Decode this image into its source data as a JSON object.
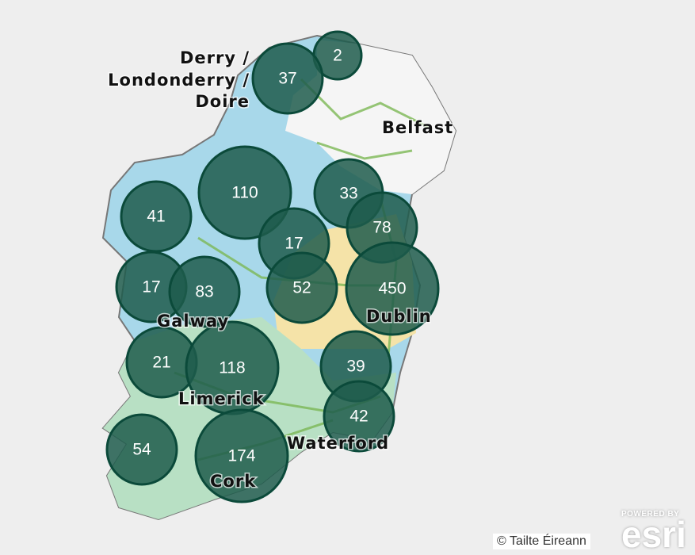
{
  "map": {
    "place_labels": [
      "Derry /",
      "Londonderry /",
      "Doire",
      "Belfast",
      "Galway",
      "Limerick",
      "Cork",
      "Waterford",
      "Dublin"
    ],
    "clusters": [
      2,
      37,
      110,
      33,
      78,
      41,
      17,
      17,
      83,
      52,
      450,
      21,
      118,
      39,
      42,
      54,
      174
    ],
    "cluster_color": "#1f5c4c",
    "cluster_stroke": "#0b4a3a"
  },
  "attribution": "© Tailte Éireann",
  "esri": {
    "powered_by": "POWERED BY",
    "logo": "esri"
  }
}
